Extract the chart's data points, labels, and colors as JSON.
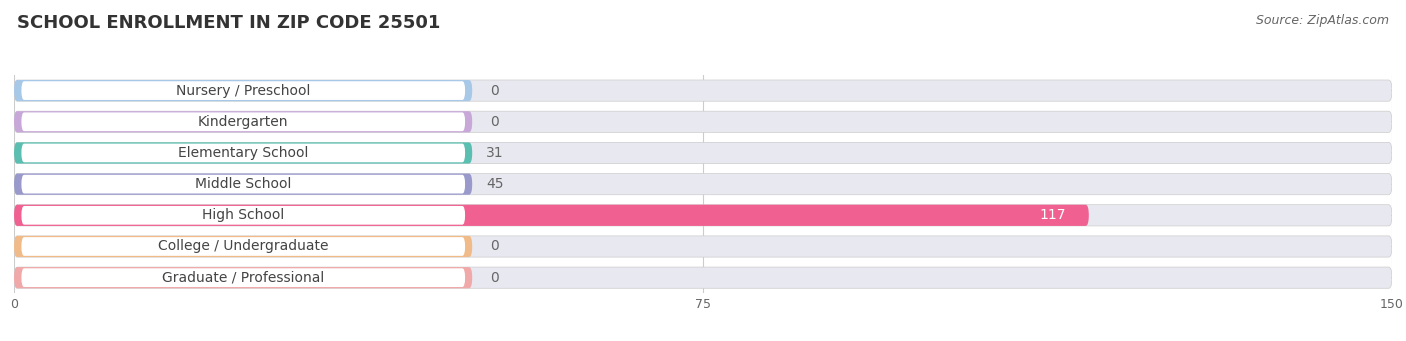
{
  "title": "SCHOOL ENROLLMENT IN ZIP CODE 25501",
  "source": "Source: ZipAtlas.com",
  "categories": [
    "Nursery / Preschool",
    "Kindergarten",
    "Elementary School",
    "Middle School",
    "High School",
    "College / Undergraduate",
    "Graduate / Professional"
  ],
  "values": [
    0,
    0,
    31,
    45,
    117,
    0,
    0
  ],
  "bar_colors": [
    "#a8c8e8",
    "#c8a8d8",
    "#5abfb0",
    "#9999cc",
    "#f06090",
    "#f0bb88",
    "#f0a8a8"
  ],
  "xlim": [
    0,
    150
  ],
  "xticks": [
    0,
    75,
    150
  ],
  "background_color": "#ffffff",
  "bar_background": "#e8e8f0",
  "title_fontsize": 13,
  "source_fontsize": 9,
  "label_fontsize": 10,
  "value_fontsize": 10,
  "bar_height": 0.68,
  "figsize": [
    14.06,
    3.41
  ],
  "dpi": 100
}
